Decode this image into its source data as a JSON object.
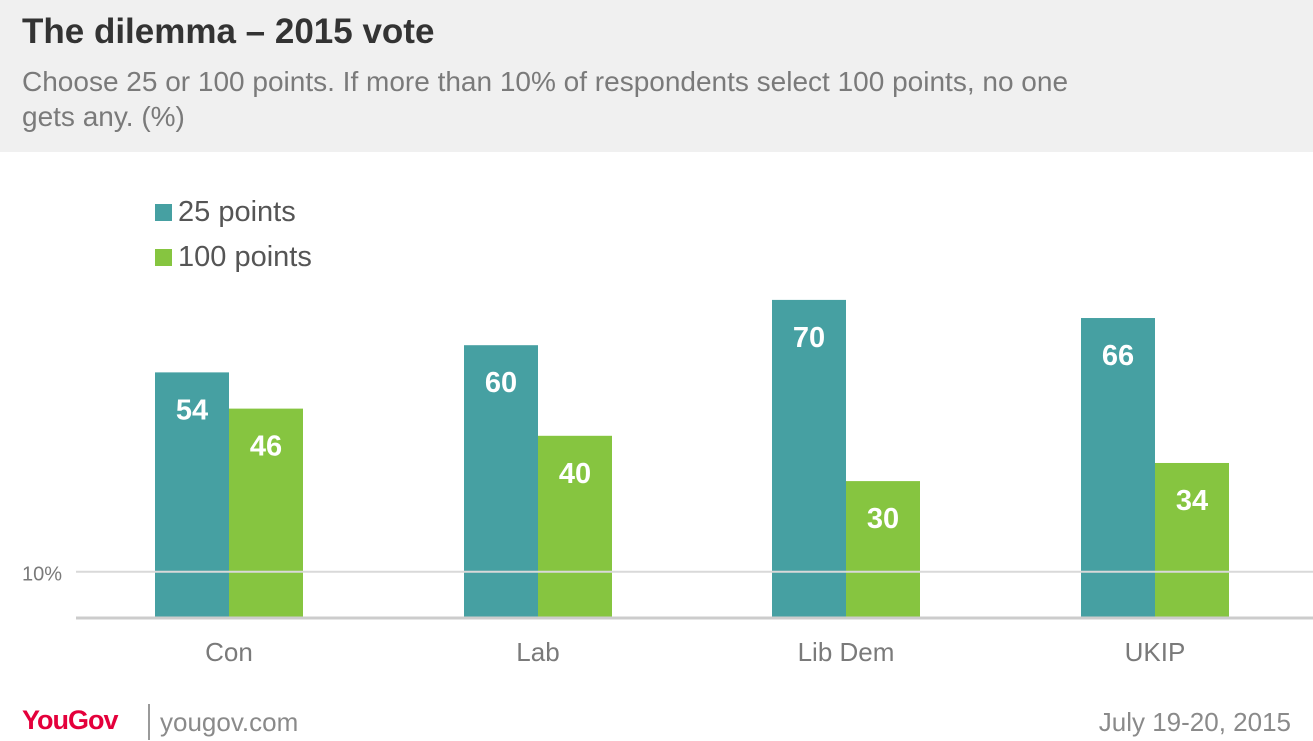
{
  "header": {
    "title": "The dilemma – 2015 vote",
    "subtitle": "Choose 25 or 100 points. If more than 10% of respondents select 100 points, no one gets any. (%)"
  },
  "colors": {
    "header_bg": "#f0f0f0",
    "teal": "#46a0a2",
    "green": "#86c540",
    "brand_red": "#e4003b"
  },
  "chart_data": {
    "type": "bar",
    "categories": [
      "Con",
      "Lab",
      "Lib Dem",
      "UKIP"
    ],
    "series": [
      {
        "name": "25 points",
        "color": "#46a0a2",
        "values": [
          54,
          60,
          70,
          66
        ]
      },
      {
        "name": "100 points",
        "color": "#86c540",
        "values": [
          46,
          40,
          30,
          34
        ]
      }
    ],
    "ylim": [
      0,
      70
    ],
    "reference_line": {
      "value": 10,
      "label": "10%"
    },
    "legend_position": "top-left",
    "data_labels": true,
    "grid": false
  },
  "footer": {
    "logo": "YouGov",
    "site": "yougov.com",
    "date": "July 19-20, 2015"
  }
}
